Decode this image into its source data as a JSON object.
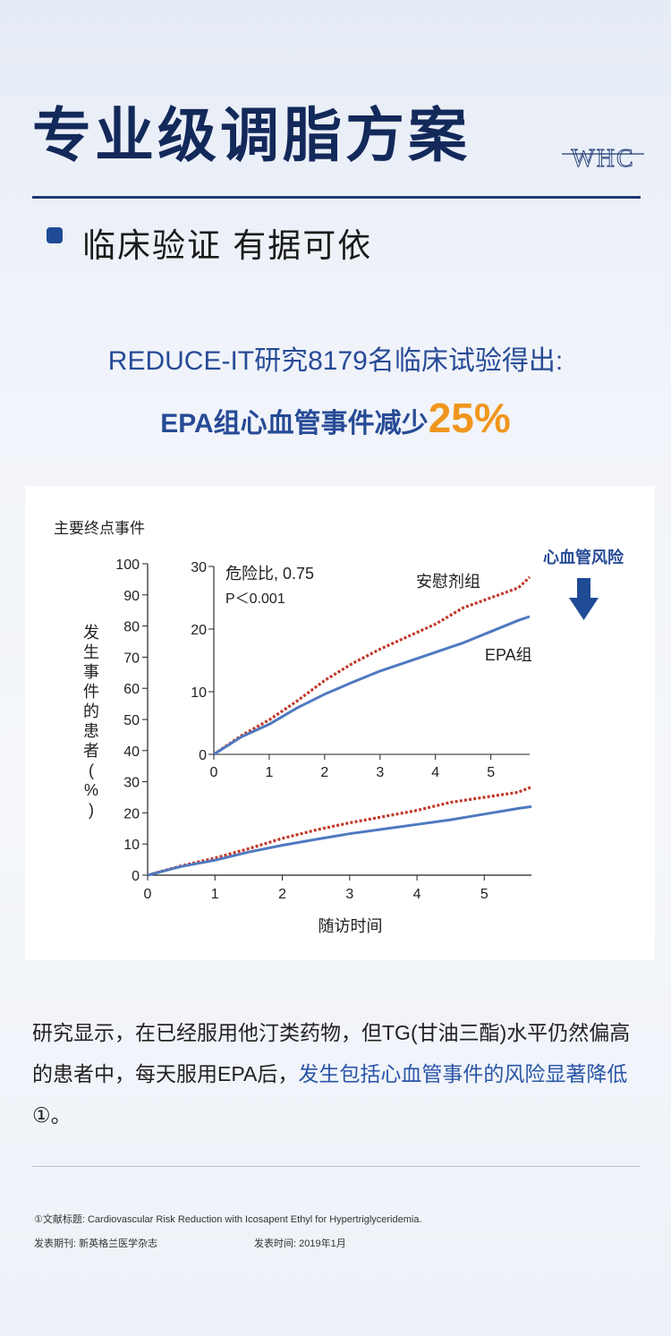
{
  "header": {
    "title": "专业级调脂方案",
    "brand": "WHC",
    "subtitle": "临床验证 有据可依"
  },
  "headline": {
    "line1": "REDUCE-IT研究8179名临床试验得出:",
    "line2_prefix": "EPA组心血管事件减少",
    "line2_highlight": "25%"
  },
  "chart_data": {
    "type": "line",
    "title": "主要终点事件",
    "xlabel": "随访时间",
    "ylabel": "发生事件的患者(%)",
    "x_ticks": [
      "0",
      "1",
      "2",
      "3",
      "4",
      "5"
    ],
    "y_ticks": [
      "0",
      "10",
      "20",
      "30",
      "40",
      "50",
      "60",
      "70",
      "80",
      "90",
      "100"
    ],
    "xlim": [
      0,
      5.7
    ],
    "ylim": [
      0,
      100
    ],
    "series": [
      {
        "name": "安慰剂组",
        "color": "#c0392b",
        "style": "dotted",
        "x": [
          0,
          0.5,
          1,
          1.5,
          2,
          2.5,
          3,
          3.5,
          4,
          4.5,
          5,
          5.5,
          5.7
        ],
        "y": [
          0,
          3,
          5.5,
          8.5,
          11.8,
          14.5,
          16.8,
          18.8,
          20.8,
          23.4,
          25,
          26.6,
          28.3
        ]
      },
      {
        "name": "EPA组",
        "color": "#4f79c0",
        "style": "solid",
        "x": [
          0,
          0.5,
          1,
          1.5,
          2,
          2.5,
          3,
          3.5,
          4,
          4.5,
          5,
          5.5,
          5.7
        ],
        "y": [
          0,
          2.8,
          4.8,
          7.4,
          9.6,
          11.5,
          13.3,
          14.8,
          16.3,
          17.8,
          19.6,
          21.4,
          22
        ]
      }
    ],
    "inset": {
      "x_ticks": [
        "0",
        "1",
        "2",
        "3",
        "4",
        "5"
      ],
      "y_ticks": [
        "0",
        "10",
        "20",
        "30"
      ],
      "xlim": [
        0,
        5.7
      ],
      "ylim": [
        0,
        30
      ],
      "annotation_hr": "危险比, 0.75",
      "annotation_p": "P＜0.001",
      "label_placebo": "安慰剂组",
      "label_epa": "EPA组"
    },
    "side_label": "心血管风险",
    "side_arrow": "down-arrow-icon"
  },
  "body": {
    "text_plain": "研究显示，在已经服用他汀类药物，但TG(甘油三酯)水平仍然偏高的患者中，每天服用EPA后，",
    "text_highlight": "发生包括心血管事件的风险显著降低",
    "text_tail": "①。"
  },
  "references": {
    "line1": "①文献标题: Cardiovascular Risk Reduction with Icosapent Ethyl for Hypertriglyceridemia.",
    "journal": "发表期刊: 新英格兰医学杂志",
    "date": "发表时间: 2019年1月"
  },
  "colors": {
    "navy": "#13295a",
    "accent_blue": "#274b96",
    "orange": "#f0961e",
    "placebo_red": "#c0392b",
    "epa_blue": "#4f79c0"
  }
}
